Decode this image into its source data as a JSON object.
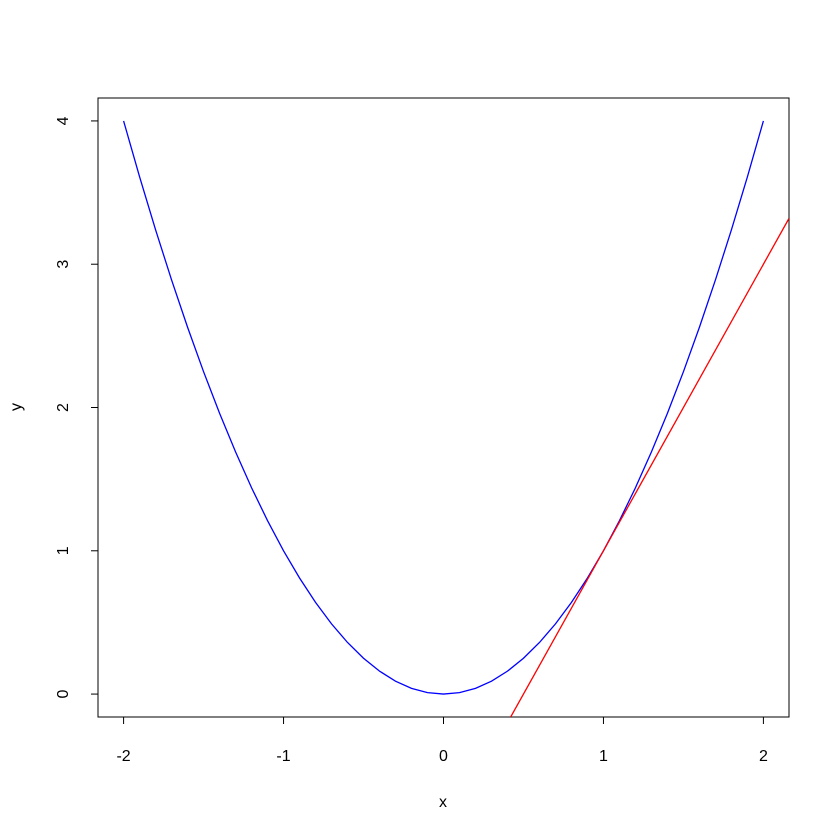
{
  "chart_data": {
    "type": "line",
    "xlabel": "x",
    "ylabel": "y",
    "xlim": [
      -2.16,
      2.16
    ],
    "ylim": [
      -0.16,
      4.16
    ],
    "xticks": [
      -2,
      -1,
      0,
      1,
      2
    ],
    "yticks": [
      0,
      1,
      2,
      3,
      4
    ],
    "grid": false,
    "series": [
      {
        "color": "#0000ff",
        "x": [
          -2,
          -1.9,
          -1.8,
          -1.7,
          -1.6,
          -1.5,
          -1.4,
          -1.3,
          -1.2,
          -1.1,
          -1,
          -0.9,
          -0.8,
          -0.7,
          -0.6,
          -0.5,
          -0.4,
          -0.3,
          -0.2,
          -0.1,
          0,
          0.1,
          0.2,
          0.3,
          0.4,
          0.5,
          0.6,
          0.7,
          0.8,
          0.9,
          1,
          1.1,
          1.2,
          1.3,
          1.4,
          1.5,
          1.6,
          1.7,
          1.8,
          1.9,
          2
        ],
        "values": [
          4,
          3.61,
          3.24,
          2.89,
          2.56,
          2.25,
          1.96,
          1.69,
          1.44,
          1.21,
          1,
          0.81,
          0.64,
          0.49,
          0.36,
          0.25,
          0.16,
          0.09,
          0.04,
          0.01,
          0,
          0.01,
          0.04,
          0.09,
          0.16,
          0.25,
          0.36,
          0.49,
          0.64,
          0.81,
          1,
          1.21,
          1.44,
          1.69,
          1.96,
          2.25,
          2.56,
          2.89,
          3.24,
          3.61,
          4
        ]
      },
      {
        "color": "#ff0000",
        "x": [
          0.42,
          2.16
        ],
        "values": [
          -0.16,
          3.32
        ]
      }
    ]
  }
}
